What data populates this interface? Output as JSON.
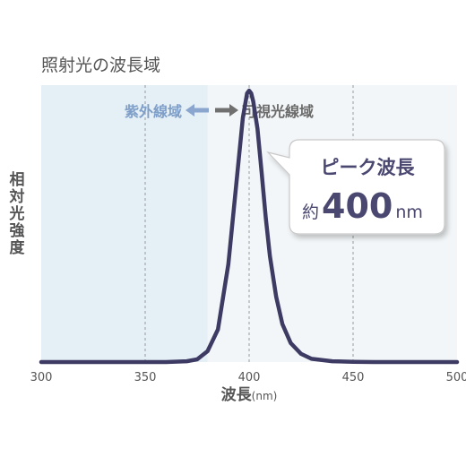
{
  "chart_data": {
    "type": "line",
    "title": "照射光の波長域",
    "xlabel": "波長",
    "xlabel_unit": "(nm)",
    "ylabel": "相対光強度",
    "xlim": [
      300,
      500
    ],
    "ylim": [
      0,
      1.02
    ],
    "xticks": [
      300,
      350,
      400,
      450,
      500
    ],
    "xtick_labels": [
      "300",
      "350",
      "400",
      "450",
      "500"
    ],
    "grid_x": [
      350,
      400,
      450
    ],
    "grid": "vertical dashed",
    "region_uv_end": 380,
    "region_labels": {
      "uv": "紫外線域",
      "visible": "可視光線域"
    },
    "peak_callout": {
      "line1": "ピーク波長",
      "prefix": "約",
      "value": "400",
      "unit": "nm"
    },
    "series": [
      {
        "x": [
          300,
          320,
          340,
          360,
          370,
          375,
          380,
          385,
          390,
          394,
          397,
          399,
          400,
          401,
          402,
          404,
          406,
          408,
          410,
          413,
          416,
          420,
          425,
          430,
          440,
          450,
          460,
          480,
          500
        ],
        "y": [
          0,
          0,
          0,
          0,
          0.003,
          0.01,
          0.04,
          0.12,
          0.36,
          0.67,
          0.9,
          0.99,
          1.0,
          0.99,
          0.96,
          0.86,
          0.7,
          0.53,
          0.39,
          0.24,
          0.14,
          0.07,
          0.03,
          0.012,
          0.003,
          0.001,
          0,
          0,
          0
        ]
      }
    ],
    "colors": {
      "line": "#3d3a63",
      "uv_fill": "#e4eff6",
      "visible_fill": "#f3f6f8",
      "grid": "#9a9a9a",
      "uv_text": "#7f9fc8",
      "visible_text": "#6b6b6b",
      "arrow_uv": "#8aa6cf",
      "arrow_visible": "#707070",
      "text": "#555555",
      "callout_text": "#4a4770"
    }
  }
}
